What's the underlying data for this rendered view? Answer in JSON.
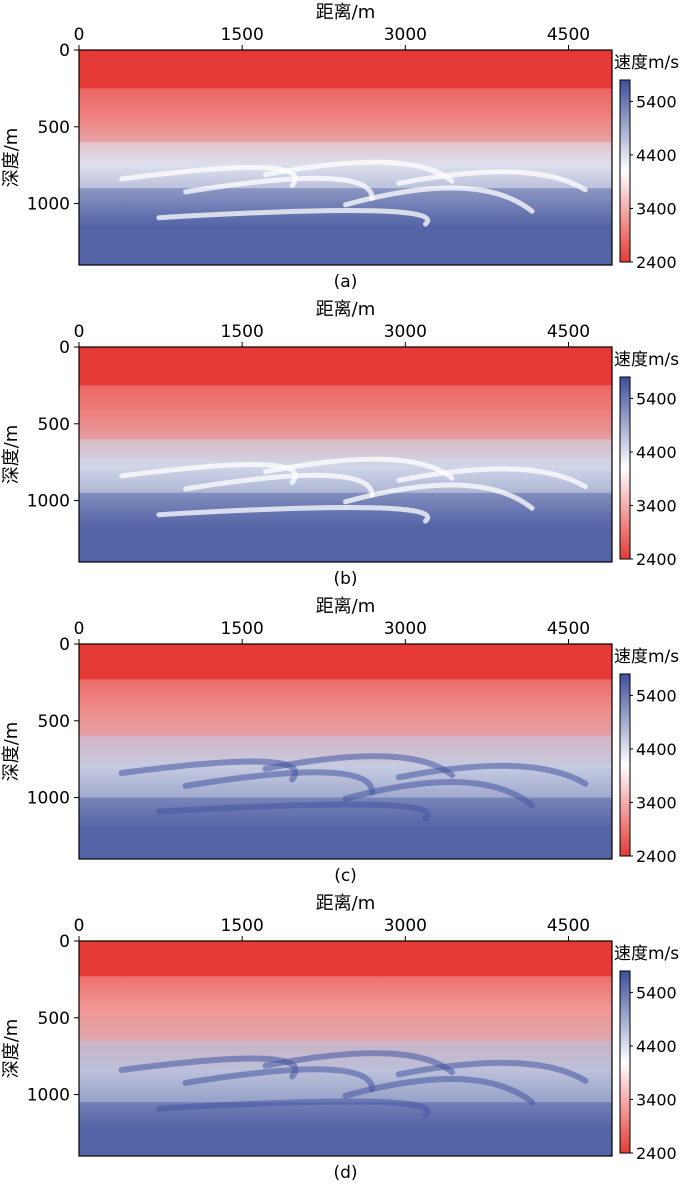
{
  "chart_data": [
    {
      "type": "heatmap",
      "panel_label": "(a)",
      "xlabel": "距离/m",
      "ylabel": "深度/m",
      "x_ticks": [
        0,
        1500,
        3000,
        4500
      ],
      "y_ticks": [
        0,
        500,
        1000
      ],
      "xlim": [
        0,
        4900
      ],
      "ylim": [
        1400,
        0
      ],
      "colorbar": {
        "title": "速度m/s",
        "ticks": [
          5400,
          4400,
          3400,
          2400
        ],
        "range": [
          2400,
          5800
        ],
        "colors": [
          "#e53a36",
          "#ffffff",
          "#3d4f9a"
        ]
      },
      "layers": [
        {
          "depth_top": 0,
          "depth_bottom": 250,
          "velocity": 2400
        },
        {
          "depth_top": 250,
          "depth_bottom": 600,
          "velocity": 3000
        },
        {
          "depth_top": 600,
          "depth_bottom": 900,
          "velocity": 4400
        },
        {
          "depth_top": 900,
          "depth_bottom": 1400,
          "velocity": 5600
        }
      ]
    },
    {
      "type": "heatmap",
      "panel_label": "(b)",
      "xlabel": "距离/m",
      "ylabel": "深度/m",
      "x_ticks": [
        0,
        1500,
        3000,
        4500
      ],
      "y_ticks": [
        0,
        500,
        1000
      ],
      "xlim": [
        0,
        4900
      ],
      "ylim": [
        1400,
        0
      ],
      "colorbar": {
        "title": "速度m/s",
        "ticks": [
          5400,
          4400,
          3400,
          2400
        ],
        "range": [
          2400,
          5800
        ],
        "colors": [
          "#e53a36",
          "#ffffff",
          "#3d4f9a"
        ]
      },
      "layers": [
        {
          "depth_top": 0,
          "depth_bottom": 250,
          "velocity": 2400
        },
        {
          "depth_top": 250,
          "depth_bottom": 600,
          "velocity": 3000
        },
        {
          "depth_top": 600,
          "depth_bottom": 950,
          "velocity": 4500
        },
        {
          "depth_top": 950,
          "depth_bottom": 1400,
          "velocity": 5600
        }
      ]
    },
    {
      "type": "heatmap",
      "panel_label": "(c)",
      "xlabel": "距离/m",
      "ylabel": "深度/m",
      "x_ticks": [
        0,
        1500,
        3000,
        4500
      ],
      "y_ticks": [
        0,
        500,
        1000
      ],
      "xlim": [
        0,
        4900
      ],
      "ylim": [
        1400,
        0
      ],
      "colorbar": {
        "title": "速度m/s",
        "ticks": [
          5400,
          4400,
          3400,
          2400
        ],
        "range": [
          2400,
          5800
        ],
        "colors": [
          "#e53a36",
          "#ffffff",
          "#3d4f9a"
        ]
      },
      "layers": [
        {
          "depth_top": 0,
          "depth_bottom": 230,
          "velocity": 2400
        },
        {
          "depth_top": 230,
          "depth_bottom": 600,
          "velocity": 3100
        },
        {
          "depth_top": 600,
          "depth_bottom": 1000,
          "velocity": 4600
        },
        {
          "depth_top": 1000,
          "depth_bottom": 1400,
          "velocity": 5600
        }
      ]
    },
    {
      "type": "heatmap",
      "panel_label": "(d)",
      "xlabel": "距离/m",
      "ylabel": "深度/m",
      "x_ticks": [
        0,
        1500,
        3000,
        4500
      ],
      "y_ticks": [
        0,
        500,
        1000
      ],
      "xlim": [
        0,
        4900
      ],
      "ylim": [
        1400,
        0
      ],
      "colorbar": {
        "title": "速度m/s",
        "ticks": [
          5400,
          4400,
          3400,
          2400
        ],
        "range": [
          2400,
          5800
        ],
        "colors": [
          "#e53a36",
          "#ffffff",
          "#3d4f9a"
        ]
      },
      "layers": [
        {
          "depth_top": 0,
          "depth_bottom": 230,
          "velocity": 2400
        },
        {
          "depth_top": 230,
          "depth_bottom": 650,
          "velocity": 3200
        },
        {
          "depth_top": 650,
          "depth_bottom": 1050,
          "velocity": 4700
        },
        {
          "depth_top": 1050,
          "depth_bottom": 1400,
          "velocity": 5600
        }
      ]
    }
  ]
}
